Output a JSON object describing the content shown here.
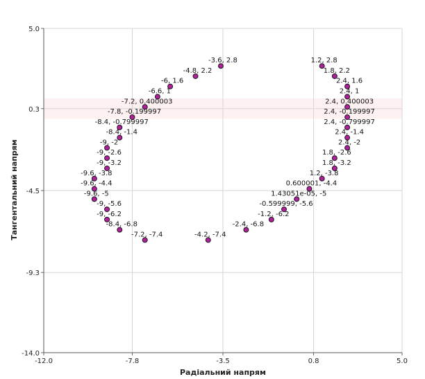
{
  "chart_data": {
    "type": "scatter",
    "title": "",
    "xlabel": "Радіальний напрям",
    "ylabel": "Тангентальний напрям",
    "xlim": [
      -12.0,
      5.0
    ],
    "ylim": [
      -14.0,
      5.0
    ],
    "x_ticks": [
      {
        "value": -12.0,
        "label": "-12.0"
      },
      {
        "value": -7.8,
        "label": "-7.8"
      },
      {
        "value": -3.5,
        "label": "-3.5"
      },
      {
        "value": 0.8,
        "label": "0.8"
      },
      {
        "value": 5.0,
        "label": "5.0"
      }
    ],
    "y_ticks": [
      {
        "value": 5.0,
        "label": "5.0"
      },
      {
        "value": 0.3,
        "label": "0.3"
      },
      {
        "value": -4.5,
        "label": "-4.5"
      },
      {
        "value": -9.3,
        "label": "-9.3"
      },
      {
        "value": -14.0,
        "label": "-14.0"
      }
    ],
    "grid": true,
    "marker_color": "#b0209b",
    "marker_edge_color": "#1a1a1a",
    "highlight_band_color": "#fde7e7",
    "points": [
      {
        "x": -3.6,
        "y": 2.8,
        "label": "-3.6, 2.8"
      },
      {
        "x": -4.8,
        "y": 2.2,
        "label": "-4.8, 2.2"
      },
      {
        "x": -6,
        "y": 1.6,
        "label": "-6, 1.6"
      },
      {
        "x": -6.6,
        "y": 1,
        "label": "-6.6, 1"
      },
      {
        "x": -7.2,
        "y": 0.400003,
        "label": "-7.2, 0.400003"
      },
      {
        "x": -7.8,
        "y": -0.199997,
        "label": "-7.8, -0.199997"
      },
      {
        "x": -8.4,
        "y": -0.799997,
        "label": "-8.4, -0.799997"
      },
      {
        "x": -8.4,
        "y": -1.4,
        "label": "-8.4, -1.4"
      },
      {
        "x": -9,
        "y": -2,
        "label": "-9, -2"
      },
      {
        "x": -9,
        "y": -2.6,
        "label": "-9, -2.6"
      },
      {
        "x": -9,
        "y": -3.2,
        "label": "-9, -3.2"
      },
      {
        "x": -9.6,
        "y": -3.8,
        "label": "-9.6, -3.8"
      },
      {
        "x": -9.6,
        "y": -4.4,
        "label": "-9.6, -4.4"
      },
      {
        "x": -9.6,
        "y": -5,
        "label": "-9.6, -5"
      },
      {
        "x": -9,
        "y": -5.6,
        "label": "-9, -5.6"
      },
      {
        "x": -9,
        "y": -6.2,
        "label": "-9, -6.2"
      },
      {
        "x": -8.4,
        "y": -6.8,
        "label": "-8.4, -6.8"
      },
      {
        "x": -7.2,
        "y": -7.4,
        "label": "-7.2, -7.4"
      },
      {
        "x": -4.2,
        "y": -7.4,
        "label": "-4.2, -7.4"
      },
      {
        "x": -2.4,
        "y": -6.8,
        "label": "-2.4, -6.8"
      },
      {
        "x": -1.2,
        "y": -6.2,
        "label": "-1.2, -6.2"
      },
      {
        "x": -0.599999,
        "y": -5.6,
        "label": "-0.599999, -5.6"
      },
      {
        "x": 1.43051e-05,
        "y": -5,
        "label": "1.43051e-05, -5"
      },
      {
        "x": 0.600001,
        "y": -4.4,
        "label": "0.600001, -4.4"
      },
      {
        "x": 1.2,
        "y": -3.8,
        "label": "1.2, -3.8"
      },
      {
        "x": 1.8,
        "y": -3.2,
        "label": "1.8, -3.2"
      },
      {
        "x": 1.8,
        "y": -2.6,
        "label": "1.8, -2.6"
      },
      {
        "x": 2.4,
        "y": -2,
        "label": "2.4, -2"
      },
      {
        "x": 2.4,
        "y": -1.4,
        "label": "2.4, -1.4"
      },
      {
        "x": 2.4,
        "y": -0.799997,
        "label": "2.4, -0.799997"
      },
      {
        "x": 2.4,
        "y": -0.199997,
        "label": "2.4, -0.199997"
      },
      {
        "x": 2.4,
        "y": 0.400003,
        "label": "2.4, 0.400003"
      },
      {
        "x": 2.4,
        "y": 1,
        "label": "2.4, 1"
      },
      {
        "x": 2.4,
        "y": 1.6,
        "label": "2.4, 1.6"
      },
      {
        "x": 1.8,
        "y": 2.2,
        "label": "1.8, 2.2"
      },
      {
        "x": 1.2,
        "y": 2.8,
        "label": "1.2, 2.8"
      }
    ]
  }
}
